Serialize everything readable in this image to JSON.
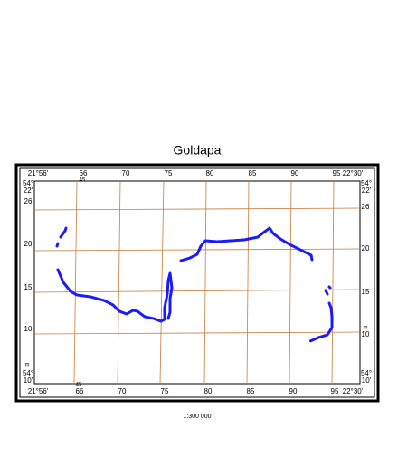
{
  "title": "Goldapa",
  "lon_labels": [
    "21°56'",
    "66",
    "70",
    "75",
    "80",
    "85",
    "90",
    "95",
    "22°30'"
  ],
  "lat_labels": [
    "26",
    "20",
    "15",
    "10"
  ],
  "corner_top": [
    "54°",
    "22'"
  ],
  "corner_bottom": [
    "54°",
    "10'"
  ],
  "minor_labels": [
    "45",
    "m"
  ],
  "scale": "1:300 000"
}
